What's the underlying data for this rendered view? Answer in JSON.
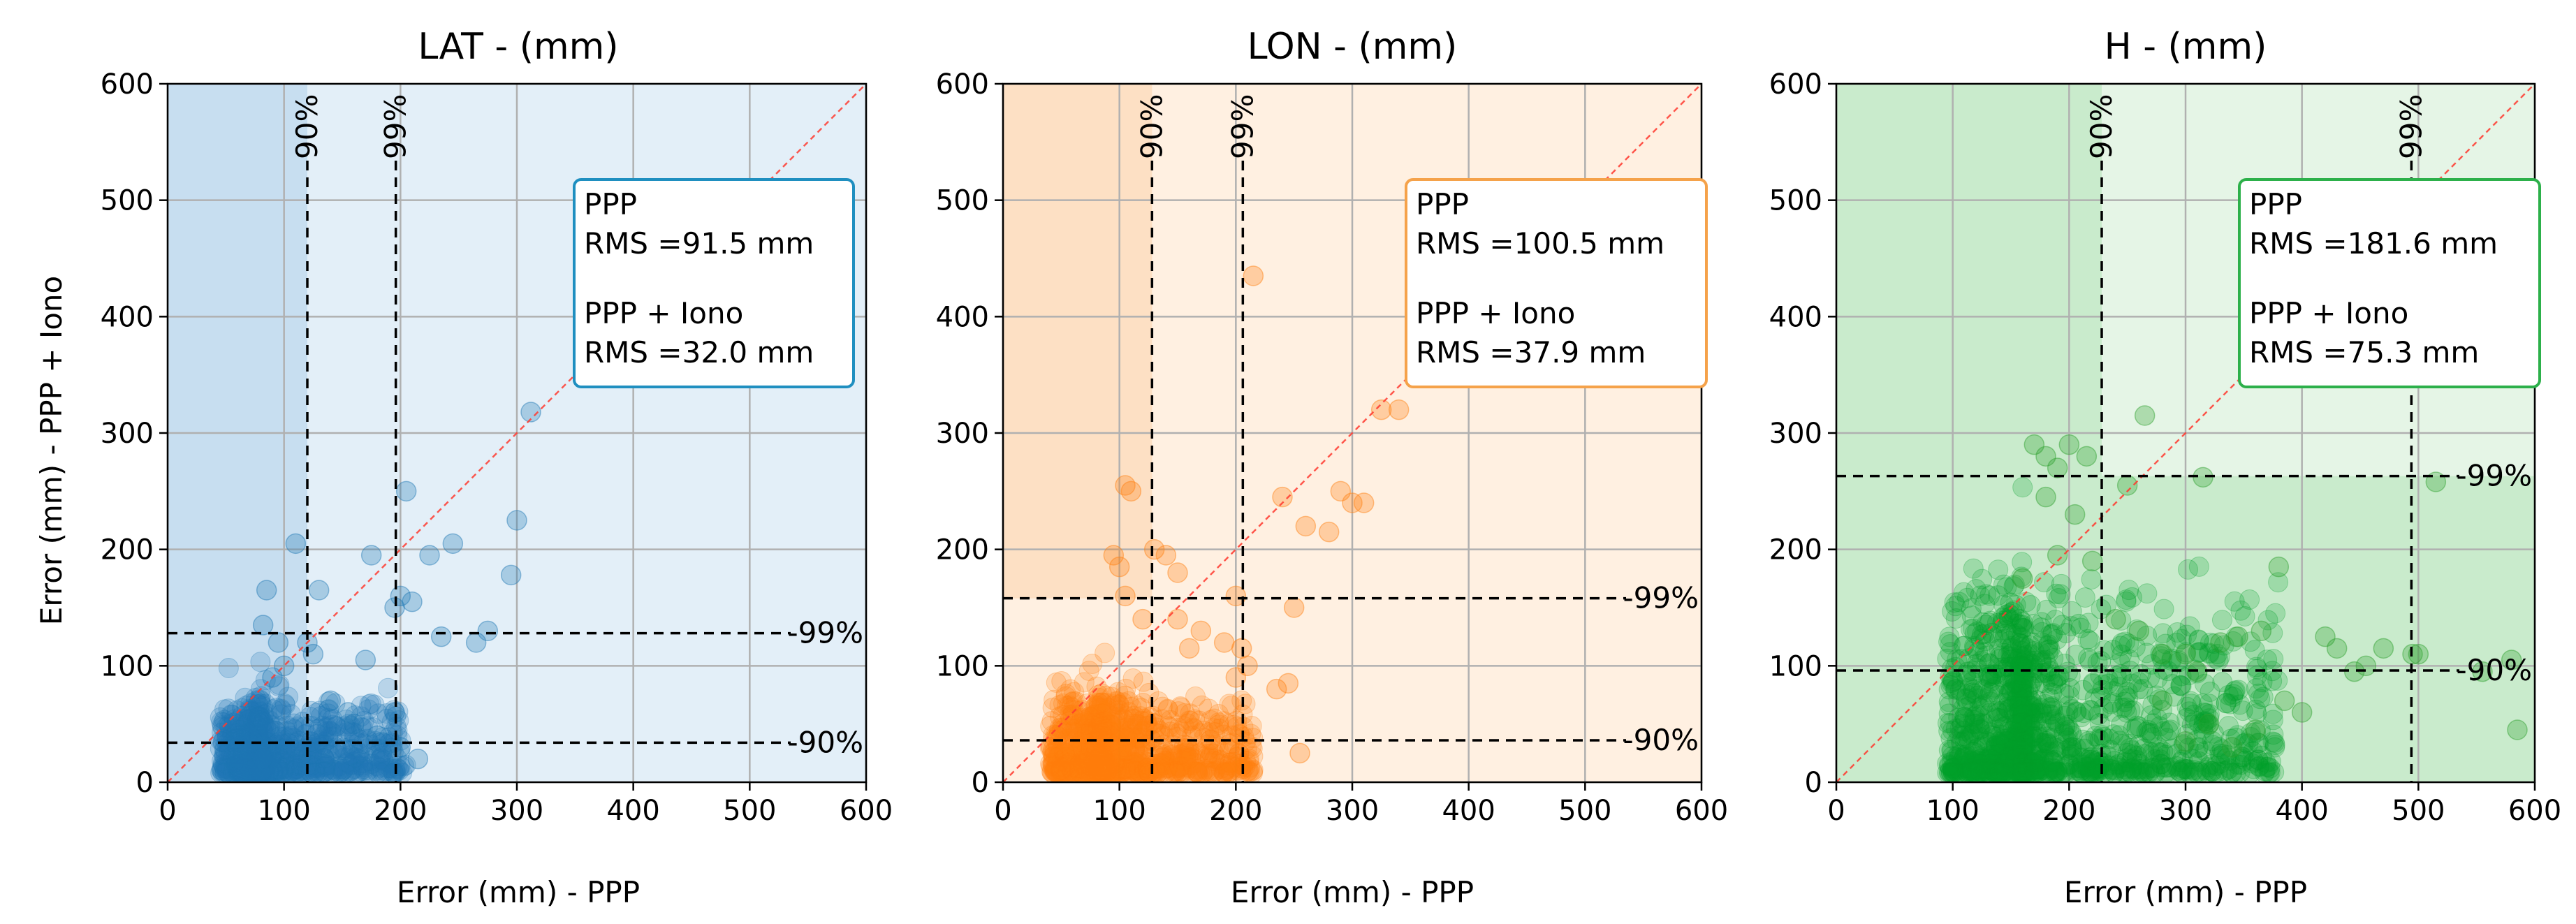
{
  "chart_data": [
    {
      "type": "scatter",
      "title": "LAT - (mm)",
      "xlabel": "Error  (mm) - PPP",
      "ylabel": "Error  (mm) - PPP + Iono",
      "xlim": [
        0,
        600
      ],
      "ylim": [
        0,
        600
      ],
      "xticks": [
        "0",
        "100",
        "200",
        "300",
        "400",
        "500",
        "600"
      ],
      "yticks": [
        "0",
        "100",
        "200",
        "300",
        "400",
        "500",
        "600"
      ],
      "grid": true,
      "color": "#1f77b4",
      "color_dark": "#1f77b4",
      "box_color": "#1f8fc0",
      "shade_light": "#e3eff8",
      "shade_dark": "#c7def0",
      "percentiles_x": [
        {
          "label": "90%",
          "value": 120
        },
        {
          "label": "99%",
          "value": 196
        }
      ],
      "percentiles_y": [
        {
          "label": "90%",
          "value": 34
        },
        {
          "label": "99%",
          "value": 128
        }
      ],
      "stats": {
        "line1": "PPP",
        "line2": "RMS =91.5 mm",
        "line3": "PPP + Iono",
        "line4": "RMS =32.0 mm"
      },
      "cluster": {
        "x_min": 45,
        "x_max": 205,
        "x_peak": 80,
        "y_scale": 18,
        "n": 950
      },
      "outliers": [
        [
          110,
          205
        ],
        [
          85,
          165
        ],
        [
          82,
          135
        ],
        [
          95,
          120
        ],
        [
          100,
          100
        ],
        [
          90,
          90
        ],
        [
          120,
          120
        ],
        [
          125,
          110
        ],
        [
          140,
          70
        ],
        [
          155,
          60
        ],
        [
          170,
          105
        ],
        [
          175,
          195
        ],
        [
          195,
          150
        ],
        [
          200,
          160
        ],
        [
          205,
          250
        ],
        [
          210,
          155
        ],
        [
          225,
          195
        ],
        [
          235,
          125
        ],
        [
          245,
          205
        ],
        [
          265,
          120
        ],
        [
          275,
          130
        ],
        [
          300,
          225
        ],
        [
          295,
          178
        ],
        [
          312,
          318
        ],
        [
          130,
          165
        ],
        [
          215,
          20
        ],
        [
          200,
          30
        ],
        [
          195,
          60
        ],
        [
          180,
          40
        ],
        [
          160,
          50
        ]
      ]
    },
    {
      "type": "scatter",
      "title": "LON - (mm)",
      "xlabel": "Error  (mm) - PPP",
      "ylabel": "",
      "xlim": [
        0,
        600
      ],
      "ylim": [
        0,
        600
      ],
      "xticks": [
        "0",
        "100",
        "200",
        "300",
        "400",
        "500",
        "600"
      ],
      "yticks": [
        "0",
        "100",
        "200",
        "300",
        "400",
        "500",
        "600"
      ],
      "grid": true,
      "color": "#ff7f0e",
      "color_dark": "#ff7f0e",
      "box_color": "#f5a24a",
      "shade_light": "#fff0e1",
      "shade_dark": "#fde0c4",
      "percentiles_x": [
        {
          "label": "90%",
          "value": 128
        },
        {
          "label": "99%",
          "value": 206
        }
      ],
      "percentiles_y": [
        {
          "label": "90%",
          "value": 36
        },
        {
          "label": "99%",
          "value": 158
        }
      ],
      "stats": {
        "line1": "PPP",
        "line2": "RMS =100.5 mm",
        "line3": "PPP + Iono",
        "line4": "RMS =37.9 mm"
      },
      "cluster": {
        "x_min": 40,
        "x_max": 215,
        "x_peak": 85,
        "y_scale": 20,
        "n": 1000
      },
      "outliers": [
        [
          105,
          255
        ],
        [
          110,
          250
        ],
        [
          100,
          185
        ],
        [
          130,
          200
        ],
        [
          140,
          195
        ],
        [
          95,
          195
        ],
        [
          105,
          160
        ],
        [
          120,
          140
        ],
        [
          150,
          140
        ],
        [
          160,
          115
        ],
        [
          200,
          160
        ],
        [
          205,
          115
        ],
        [
          210,
          100
        ],
        [
          215,
          435
        ],
        [
          235,
          80
        ],
        [
          245,
          85
        ],
        [
          250,
          150
        ],
        [
          255,
          25
        ],
        [
          240,
          245
        ],
        [
          260,
          220
        ],
        [
          280,
          215
        ],
        [
          290,
          250
        ],
        [
          300,
          240
        ],
        [
          310,
          240
        ],
        [
          325,
          320
        ],
        [
          340,
          320
        ],
        [
          150,
          180
        ],
        [
          170,
          130
        ],
        [
          190,
          120
        ],
        [
          200,
          90
        ]
      ]
    },
    {
      "type": "scatter",
      "title": "H - (mm)",
      "xlabel": "Error  (mm) - PPP",
      "ylabel": "",
      "xlim": [
        0,
        600
      ],
      "ylim": [
        0,
        600
      ],
      "xticks": [
        "0",
        "100",
        "200",
        "300",
        "400",
        "500",
        "600"
      ],
      "yticks": [
        "0",
        "100",
        "200",
        "300",
        "400",
        "500",
        "600"
      ],
      "grid": true,
      "color": "#2ca02c",
      "color_dark": "#00a02a",
      "box_color": "#2cb04a",
      "shade_light": "#e5f5e6",
      "shade_dark": "#c9ebcc",
      "percentiles_x": [
        {
          "label": "90%",
          "value": 228
        },
        {
          "label": "99%",
          "value": 494
        }
      ],
      "percentiles_y": [
        {
          "label": "90%",
          "value": 96
        },
        {
          "label": "99%",
          "value": 263
        }
      ],
      "stats": {
        "line1": "PPP",
        "line2": "RMS =181.6 mm",
        "line3": "PPP + Iono",
        "line4": "RMS =75.3 mm"
      },
      "cluster": {
        "x_min": 95,
        "x_max": 380,
        "x_peak": 160,
        "y_scale": 45,
        "n": 1300
      },
      "outliers": [
        [
          170,
          290
        ],
        [
          180,
          280
        ],
        [
          200,
          290
        ],
        [
          215,
          280
        ],
        [
          190,
          270
        ],
        [
          205,
          230
        ],
        [
          180,
          245
        ],
        [
          190,
          195
        ],
        [
          220,
          190
        ],
        [
          160,
          175
        ],
        [
          265,
          315
        ],
        [
          315,
          262
        ],
        [
          250,
          255
        ],
        [
          260,
          130
        ],
        [
          280,
          110
        ],
        [
          300,
          110
        ],
        [
          310,
          95
        ],
        [
          330,
          120
        ],
        [
          345,
          125
        ],
        [
          380,
          185
        ],
        [
          365,
          130
        ],
        [
          400,
          60
        ],
        [
          420,
          125
        ],
        [
          430,
          115
        ],
        [
          445,
          95
        ],
        [
          455,
          100
        ],
        [
          470,
          115
        ],
        [
          495,
          110
        ],
        [
          500,
          110
        ],
        [
          515,
          258
        ],
        [
          585,
          45
        ],
        [
          555,
          95
        ],
        [
          580,
          105
        ],
        [
          385,
          70
        ],
        [
          360,
          45
        ],
        [
          340,
          30
        ],
        [
          320,
          50
        ],
        [
          300,
          35
        ],
        [
          280,
          70
        ],
        [
          240,
          140
        ]
      ]
    }
  ]
}
